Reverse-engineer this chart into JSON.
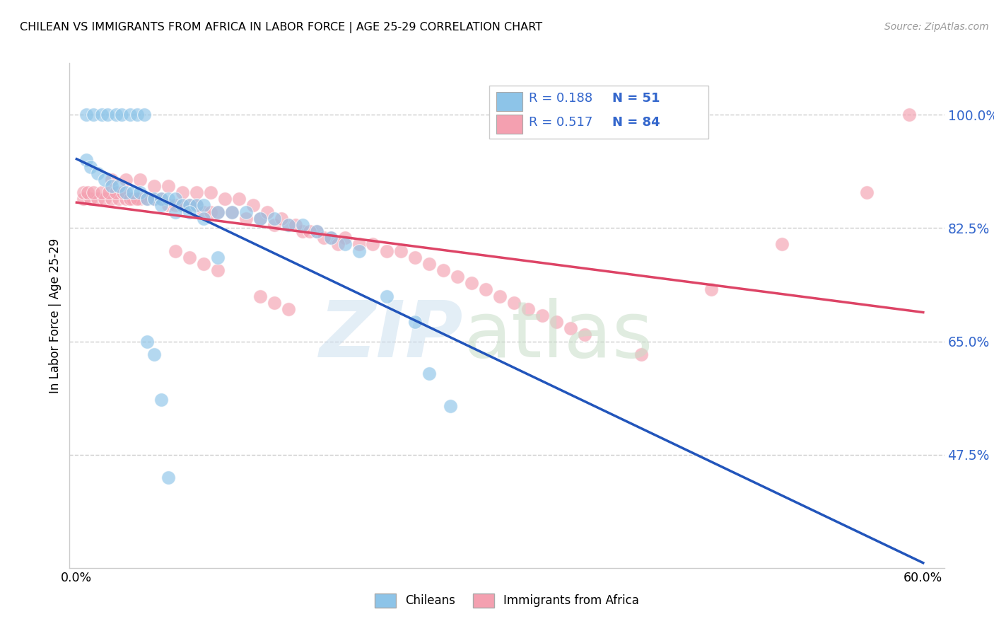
{
  "title": "CHILEAN VS IMMIGRANTS FROM AFRICA IN LABOR FORCE | AGE 25-29 CORRELATION CHART",
  "source": "Source: ZipAtlas.com",
  "ylabel": "In Labor Force | Age 25-29",
  "yticks": [
    0.475,
    0.65,
    0.825,
    1.0
  ],
  "ytick_labels": [
    "47.5%",
    "65.0%",
    "82.5%",
    "100.0%"
  ],
  "xlim": [
    -0.005,
    0.615
  ],
  "ylim": [
    0.3,
    1.08
  ],
  "xtick_labels": [
    "0.0%",
    "60.0%"
  ],
  "xtick_vals": [
    0.0,
    0.6
  ],
  "legend_labels": [
    "Chileans",
    "Immigrants from Africa"
  ],
  "R_chilean": 0.188,
  "N_chilean": 51,
  "R_africa": 0.517,
  "N_africa": 84,
  "color_chilean": "#8DC4E8",
  "color_africa": "#F4A0B0",
  "trend_color_chilean": "#2255BB",
  "trend_color_africa": "#DD4466",
  "chilean_x": [
    0.007,
    0.012,
    0.018,
    0.022,
    0.028,
    0.032,
    0.038,
    0.043,
    0.048,
    0.007,
    0.01,
    0.015,
    0.02,
    0.025,
    0.03,
    0.035,
    0.04,
    0.045,
    0.05,
    0.055,
    0.06,
    0.065,
    0.07,
    0.075,
    0.08,
    0.085,
    0.09,
    0.1,
    0.11,
    0.12,
    0.13,
    0.14,
    0.15,
    0.16,
    0.17,
    0.18,
    0.19,
    0.2,
    0.06,
    0.07,
    0.08,
    0.09,
    0.1,
    0.22,
    0.24,
    0.25,
    0.265,
    0.05,
    0.055,
    0.06,
    0.065
  ],
  "chilean_y": [
    1.0,
    1.0,
    1.0,
    1.0,
    1.0,
    1.0,
    1.0,
    1.0,
    1.0,
    0.93,
    0.92,
    0.91,
    0.9,
    0.89,
    0.89,
    0.88,
    0.88,
    0.88,
    0.87,
    0.87,
    0.87,
    0.87,
    0.87,
    0.86,
    0.86,
    0.86,
    0.86,
    0.85,
    0.85,
    0.85,
    0.84,
    0.84,
    0.83,
    0.83,
    0.82,
    0.81,
    0.8,
    0.79,
    0.86,
    0.85,
    0.85,
    0.84,
    0.78,
    0.72,
    0.68,
    0.6,
    0.55,
    0.65,
    0.63,
    0.56,
    0.44
  ],
  "africa_x": [
    0.005,
    0.01,
    0.015,
    0.02,
    0.025,
    0.03,
    0.035,
    0.04,
    0.045,
    0.005,
    0.008,
    0.012,
    0.018,
    0.023,
    0.028,
    0.033,
    0.038,
    0.043,
    0.05,
    0.055,
    0.06,
    0.065,
    0.07,
    0.075,
    0.08,
    0.085,
    0.09,
    0.095,
    0.1,
    0.11,
    0.12,
    0.13,
    0.14,
    0.15,
    0.16,
    0.17,
    0.18,
    0.19,
    0.2,
    0.21,
    0.22,
    0.23,
    0.24,
    0.25,
    0.26,
    0.27,
    0.28,
    0.29,
    0.3,
    0.31,
    0.32,
    0.33,
    0.34,
    0.35,
    0.36,
    0.025,
    0.035,
    0.045,
    0.055,
    0.065,
    0.075,
    0.085,
    0.095,
    0.105,
    0.115,
    0.125,
    0.135,
    0.145,
    0.155,
    0.165,
    0.175,
    0.185,
    0.4,
    0.45,
    0.5,
    0.56,
    0.59,
    0.07,
    0.08,
    0.09,
    0.1,
    0.13,
    0.14,
    0.15
  ],
  "africa_y": [
    0.87,
    0.87,
    0.87,
    0.87,
    0.87,
    0.87,
    0.87,
    0.87,
    0.87,
    0.88,
    0.88,
    0.88,
    0.88,
    0.88,
    0.88,
    0.88,
    0.87,
    0.87,
    0.87,
    0.87,
    0.87,
    0.86,
    0.86,
    0.86,
    0.86,
    0.86,
    0.85,
    0.85,
    0.85,
    0.85,
    0.84,
    0.84,
    0.83,
    0.83,
    0.82,
    0.82,
    0.81,
    0.81,
    0.8,
    0.8,
    0.79,
    0.79,
    0.78,
    0.77,
    0.76,
    0.75,
    0.74,
    0.73,
    0.72,
    0.71,
    0.7,
    0.69,
    0.68,
    0.67,
    0.66,
    0.9,
    0.9,
    0.9,
    0.89,
    0.89,
    0.88,
    0.88,
    0.88,
    0.87,
    0.87,
    0.86,
    0.85,
    0.84,
    0.83,
    0.82,
    0.81,
    0.8,
    0.63,
    0.73,
    0.8,
    0.88,
    1.0,
    0.79,
    0.78,
    0.77,
    0.76,
    0.72,
    0.71,
    0.7
  ]
}
